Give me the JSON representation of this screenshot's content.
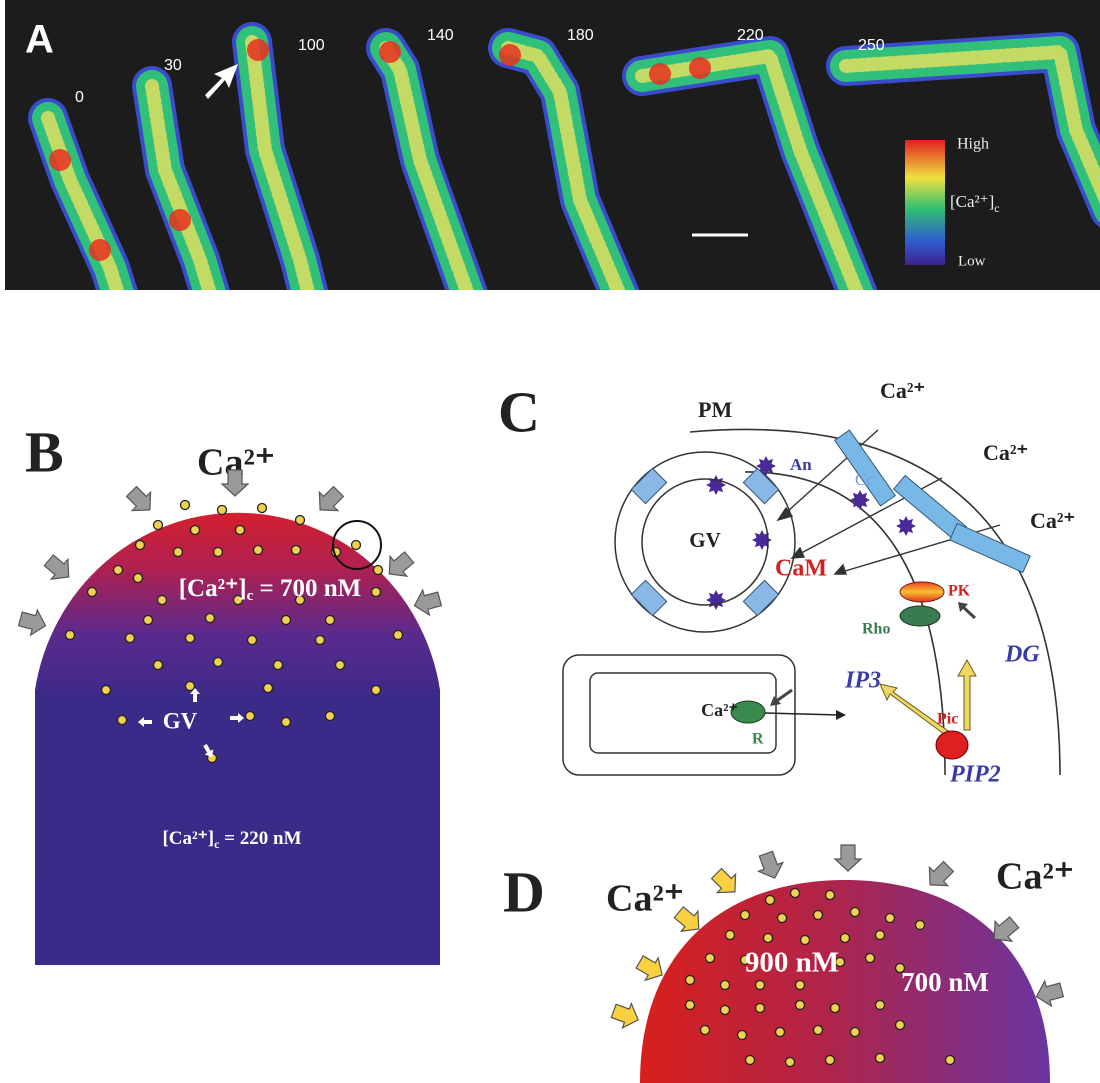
{
  "panel_a": {
    "label": "A",
    "times": [
      "0",
      "30",
      "100",
      "140",
      "180",
      "220",
      "250"
    ],
    "legend": {
      "high": "High",
      "ion": "[Ca²⁺]",
      "ion_sub": "c",
      "low": "Low"
    }
  },
  "panel_b": {
    "label": "B",
    "ion": "Ca²⁺",
    "tip_conc": {
      "ion": "[Ca²⁺]",
      "ion_sub": "c",
      "value": " = 700 nM"
    },
    "vesicles": "GV",
    "base_conc": {
      "ion": "[Ca²⁺]",
      "ion_sub": "c",
      "value": " = 220 nM"
    }
  },
  "panel_c": {
    "label": "C",
    "membrane": "PM",
    "annexin": "An",
    "ions": [
      "Ca²⁺",
      "Ca²⁺",
      "Ca²⁺",
      "Ca²⁺"
    ],
    "channel": "Cc",
    "vesicle": "GV",
    "calmodulin": "CaM",
    "kinase": "PK",
    "rho": "Rho",
    "dg": "DG",
    "ip3": "IP3",
    "plc": "Pic",
    "receptor": "R",
    "pip2": "PIP2"
  },
  "panel_d": {
    "label": "D",
    "ions": [
      "Ca²⁺",
      "Ca²⁺"
    ],
    "tip_conc": "900 nM",
    "flank_conc": "700 nM"
  }
}
